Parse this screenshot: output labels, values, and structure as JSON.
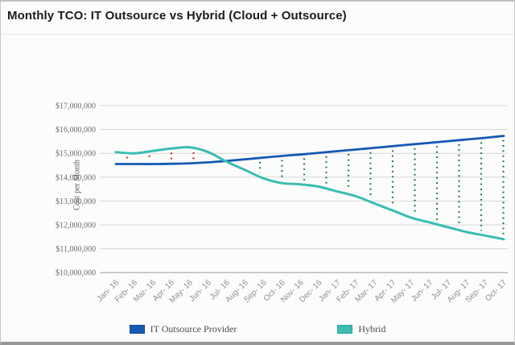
{
  "header": {
    "title": "Monthly TCO: IT Outsource vs Hybrid (Cloud + Outsource)"
  },
  "chart_data": {
    "type": "line",
    "title": "Monthly TCO: IT Outsource vs Hybrid (Cloud + Outsource)",
    "xlabel": "",
    "ylabel": "Cost per Month",
    "ylim": [
      10000000,
      17000000
    ],
    "ytick_step": 1000000,
    "ytick_labels": [
      "$17,000,000",
      "$16,000,000",
      "$15,000,000",
      "$14,000,000",
      "$13,000,000",
      "$12,000,000",
      "$11,000,000",
      "$10,000,000"
    ],
    "grid": true,
    "legend_position": "bottom",
    "categories": [
      "Jan- 16",
      "Feb- 16",
      "Mar- 16",
      "Apr- 16",
      "May- 16",
      "Jun- 16",
      "Jul- 16",
      "Aug- 16",
      "Sep- 16",
      "Oct- 16",
      "Nov- 16",
      "Dec- 16",
      "Jan- 17",
      "Feb- 17",
      "Mar- 17",
      "Apr- 17",
      "May- 17",
      "Jun- 17",
      "Jul- 17",
      "Aug- 17",
      "Sep- 17",
      "Oct- 17"
    ],
    "series": [
      {
        "name": "IT Outsource Provider",
        "color": "#1659b3",
        "values": [
          14550000,
          14550000,
          14550000,
          14560000,
          14580000,
          14620000,
          14680000,
          14750000,
          14820000,
          14890000,
          14950000,
          15020000,
          15090000,
          15160000,
          15230000,
          15300000,
          15370000,
          15440000,
          15510000,
          15580000,
          15650000,
          15730000
        ]
      },
      {
        "name": "Hybrid",
        "color": "#3abdb3",
        "values": [
          15050000,
          15000000,
          15100000,
          15200000,
          15250000,
          15050000,
          14650000,
          14300000,
          13950000,
          13750000,
          13700000,
          13600000,
          13400000,
          13200000,
          12900000,
          12600000,
          12300000,
          12100000,
          11900000,
          11700000,
          11550000,
          11400000
        ]
      }
    ],
    "difference_markers": {
      "style": "vertical-dotted",
      "hybrid_above_color": "#c8292b",
      "hybrid_below_color": "#1d7a34"
    }
  },
  "colors": {
    "grid": "#d6d6d6",
    "axis": "#b3b3b3",
    "y_tick_text": "#6b6b72",
    "x_tick_text": "#8f8f97"
  }
}
